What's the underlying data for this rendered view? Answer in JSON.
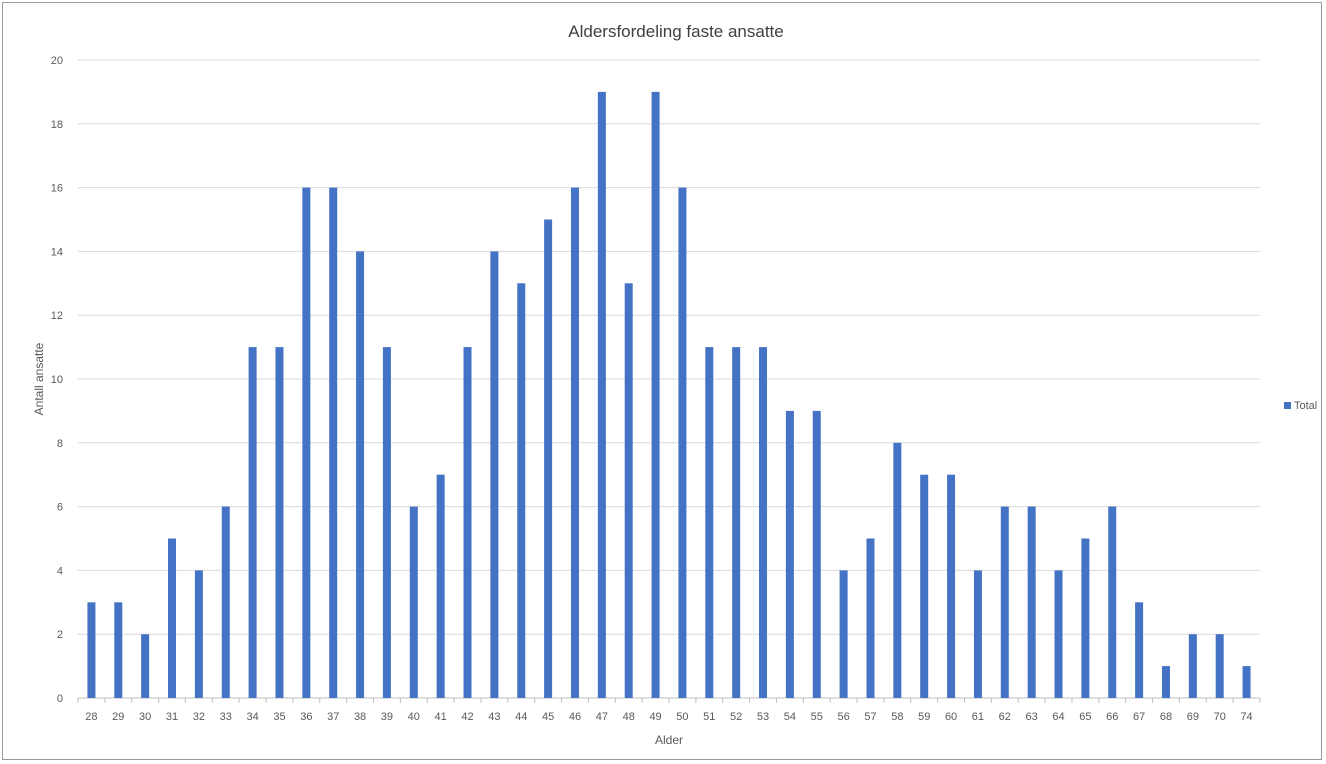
{
  "chart_data": {
    "type": "bar",
    "title": "Aldersfordeling faste ansatte",
    "xlabel": "Alder",
    "ylabel": "Antall ansatte",
    "categories": [
      "28",
      "29",
      "30",
      "31",
      "32",
      "33",
      "34",
      "35",
      "36",
      "37",
      "38",
      "39",
      "40",
      "41",
      "42",
      "43",
      "44",
      "45",
      "46",
      "47",
      "48",
      "49",
      "50",
      "51",
      "52",
      "53",
      "54",
      "55",
      "56",
      "57",
      "58",
      "59",
      "60",
      "61",
      "62",
      "63",
      "64",
      "65",
      "66",
      "67",
      "68",
      "69",
      "70",
      "74"
    ],
    "series": [
      {
        "name": "Total",
        "values": [
          3,
          3,
          2,
          5,
          4,
          6,
          11,
          11,
          16,
          16,
          14,
          11,
          6,
          7,
          11,
          14,
          13,
          15,
          16,
          19,
          13,
          19,
          16,
          11,
          11,
          11,
          9,
          9,
          4,
          5,
          8,
          7,
          7,
          4,
          6,
          6,
          4,
          5,
          6,
          3,
          1,
          2,
          2,
          1
        ]
      }
    ],
    "ylim": [
      0,
      20
    ],
    "yticks": [
      "0",
      "2",
      "4",
      "6",
      "8",
      "10",
      "12",
      "14",
      "16",
      "18",
      "20"
    ],
    "grid": true,
    "legend": "right",
    "colors": {
      "bar": "#4472C4",
      "grid": "#D9D9D9",
      "axis": "#BFBFBF"
    }
  }
}
